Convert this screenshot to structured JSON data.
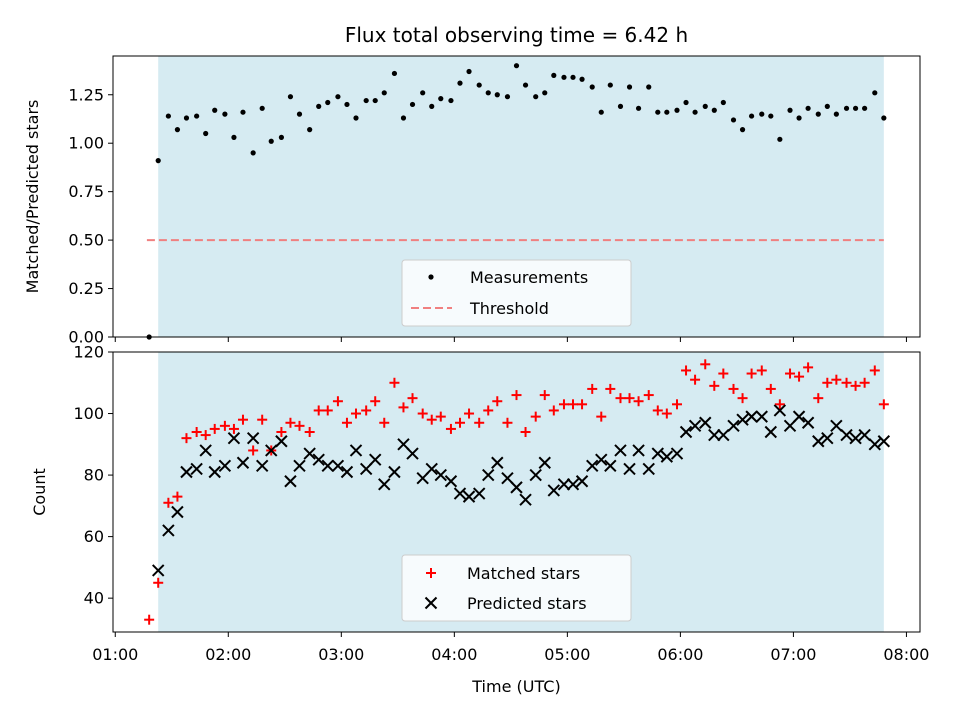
{
  "chart_data": [
    {
      "type": "scatter",
      "title": "Flux total observing time = 6.42 h",
      "xlabel": "",
      "ylabel": "Matched/Predicted stars",
      "ylim": [
        0,
        1.45
      ],
      "yticks": [
        "0.00",
        "0.25",
        "0.50",
        "0.75",
        "1.00",
        "1.25"
      ],
      "shaded_span": [
        1.38,
        7.8
      ],
      "threshold": {
        "name": "Threshold",
        "y": 0.5,
        "x_range": [
          1.28,
          7.8
        ],
        "color": "#f08080"
      },
      "series": [
        {
          "name": "Measurements",
          "color": "#000000",
          "x": [
            1.3,
            1.38,
            1.47,
            1.55,
            1.63,
            1.72,
            1.8,
            1.88,
            1.97,
            2.05,
            2.13,
            2.22,
            2.3,
            2.38,
            2.47,
            2.55,
            2.63,
            2.72,
            2.8,
            2.88,
            2.97,
            3.05,
            3.13,
            3.22,
            3.3,
            3.38,
            3.47,
            3.55,
            3.63,
            3.72,
            3.8,
            3.88,
            3.97,
            4.05,
            4.13,
            4.22,
            4.3,
            4.38,
            4.47,
            4.55,
            4.63,
            4.72,
            4.8,
            4.88,
            4.97,
            5.05,
            5.13,
            5.22,
            5.3,
            5.38,
            5.47,
            5.55,
            5.63,
            5.72,
            5.8,
            5.88,
            5.97,
            6.05,
            6.13,
            6.22,
            6.3,
            6.38,
            6.47,
            6.55,
            6.63,
            6.72,
            6.8,
            6.88,
            6.97,
            7.05,
            7.13,
            7.22,
            7.3,
            7.38,
            7.47,
            7.55,
            7.63,
            7.72,
            7.8
          ],
          "y": [
            0.0,
            0.91,
            1.14,
            1.07,
            1.13,
            1.14,
            1.05,
            1.17,
            1.15,
            1.03,
            1.16,
            0.95,
            1.18,
            1.01,
            1.03,
            1.24,
            1.15,
            1.07,
            1.19,
            1.21,
            1.24,
            1.2,
            1.13,
            1.22,
            1.22,
            1.26,
            1.36,
            1.13,
            1.2,
            1.26,
            1.19,
            1.23,
            1.22,
            1.31,
            1.37,
            1.3,
            1.26,
            1.25,
            1.24,
            1.4,
            1.3,
            1.24,
            1.26,
            1.35,
            1.34,
            1.34,
            1.33,
            1.29,
            1.16,
            1.3,
            1.19,
            1.29,
            1.18,
            1.29,
            1.16,
            1.16,
            1.17,
            1.21,
            1.16,
            1.19,
            1.17,
            1.21,
            1.12,
            1.07,
            1.14,
            1.15,
            1.14,
            1.02,
            1.17,
            1.13,
            1.18,
            1.15,
            1.19,
            1.15,
            1.18,
            1.18,
            1.18,
            1.26,
            1.13
          ]
        }
      ],
      "legend": {
        "position": "bottom-center",
        "entries": [
          "Measurements",
          "Threshold"
        ]
      }
    },
    {
      "type": "scatter",
      "title": "",
      "xlabel": "Time (UTC)",
      "ylabel": "Count",
      "ylim": [
        29,
        120
      ],
      "xlim": [
        0.98,
        8.12
      ],
      "yticks": [
        "40",
        "60",
        "80",
        "100",
        "120"
      ],
      "xticks": [
        "01:00",
        "02:00",
        "03:00",
        "04:00",
        "05:00",
        "06:00",
        "07:00",
        "08:00"
      ],
      "shaded_span": [
        1.38,
        7.8
      ],
      "series": [
        {
          "name": "Matched stars",
          "marker": "plus",
          "color": "#ff0000",
          "x": [
            1.3,
            1.38,
            1.47,
            1.55,
            1.63,
            1.72,
            1.8,
            1.88,
            1.97,
            2.05,
            2.13,
            2.22,
            2.3,
            2.38,
            2.47,
            2.55,
            2.63,
            2.72,
            2.8,
            2.88,
            2.97,
            3.05,
            3.13,
            3.22,
            3.3,
            3.38,
            3.47,
            3.55,
            3.63,
            3.72,
            3.8,
            3.88,
            3.97,
            4.05,
            4.13,
            4.22,
            4.3,
            4.38,
            4.47,
            4.55,
            4.63,
            4.72,
            4.8,
            4.88,
            4.97,
            5.05,
            5.13,
            5.22,
            5.3,
            5.38,
            5.47,
            5.55,
            5.63,
            5.72,
            5.8,
            5.88,
            5.97,
            6.05,
            6.13,
            6.22,
            6.3,
            6.38,
            6.47,
            6.55,
            6.63,
            6.72,
            6.8,
            6.88,
            6.97,
            7.05,
            7.13,
            7.22,
            7.3,
            7.38,
            7.47,
            7.55,
            7.63,
            7.72,
            7.8
          ],
          "y": [
            33,
            45,
            71,
            73,
            92,
            94,
            93,
            95,
            96,
            95,
            98,
            88,
            98,
            88,
            94,
            97,
            96,
            94,
            101,
            101,
            104,
            97,
            100,
            101,
            104,
            97,
            110,
            102,
            105,
            100,
            98,
            99,
            95,
            97,
            100,
            97,
            101,
            104,
            97,
            106,
            94,
            99,
            106,
            101,
            103,
            103,
            103,
            108,
            99,
            108,
            105,
            105,
            104,
            106,
            101,
            100,
            103,
            114,
            111,
            116,
            109,
            113,
            108,
            105,
            113,
            114,
            108,
            103,
            113,
            112,
            115,
            105,
            110,
            111,
            110,
            109,
            110,
            114,
            103
          ]
        },
        {
          "name": "Predicted stars",
          "marker": "x",
          "color": "#000000",
          "x": [
            1.38,
            1.47,
            1.55,
            1.63,
            1.72,
            1.8,
            1.88,
            1.97,
            2.05,
            2.13,
            2.22,
            2.3,
            2.38,
            2.47,
            2.55,
            2.63,
            2.72,
            2.8,
            2.88,
            2.97,
            3.05,
            3.13,
            3.22,
            3.3,
            3.38,
            3.47,
            3.55,
            3.63,
            3.72,
            3.8,
            3.88,
            3.97,
            4.05,
            4.13,
            4.22,
            4.3,
            4.38,
            4.47,
            4.55,
            4.63,
            4.72,
            4.8,
            4.88,
            4.97,
            5.05,
            5.13,
            5.22,
            5.3,
            5.38,
            5.47,
            5.55,
            5.63,
            5.72,
            5.8,
            5.88,
            5.97,
            6.05,
            6.13,
            6.22,
            6.3,
            6.38,
            6.47,
            6.55,
            6.63,
            6.72,
            6.8,
            6.88,
            6.97,
            7.05,
            7.13,
            7.22,
            7.3,
            7.38,
            7.47,
            7.55,
            7.63,
            7.72,
            7.8
          ],
          "y": [
            49,
            62,
            68,
            81,
            82,
            88,
            81,
            83,
            92,
            84,
            92,
            83,
            88,
            91,
            78,
            83,
            87,
            85,
            83,
            83,
            81,
            88,
            82,
            85,
            77,
            81,
            90,
            87,
            79,
            82,
            80,
            78,
            74,
            73,
            74,
            80,
            84,
            79,
            76,
            72,
            80,
            84,
            75,
            77,
            77,
            78,
            83,
            85,
            83,
            88,
            82,
            88,
            82,
            87,
            86,
            87,
            94,
            96,
            97,
            93,
            93,
            96,
            98,
            99,
            99,
            94,
            101,
            96,
            99,
            97,
            91,
            92,
            96,
            93,
            92,
            93,
            90,
            91
          ]
        }
      ],
      "legend": {
        "position": "bottom-center",
        "entries": [
          "Matched stars",
          "Predicted stars"
        ]
      }
    }
  ]
}
